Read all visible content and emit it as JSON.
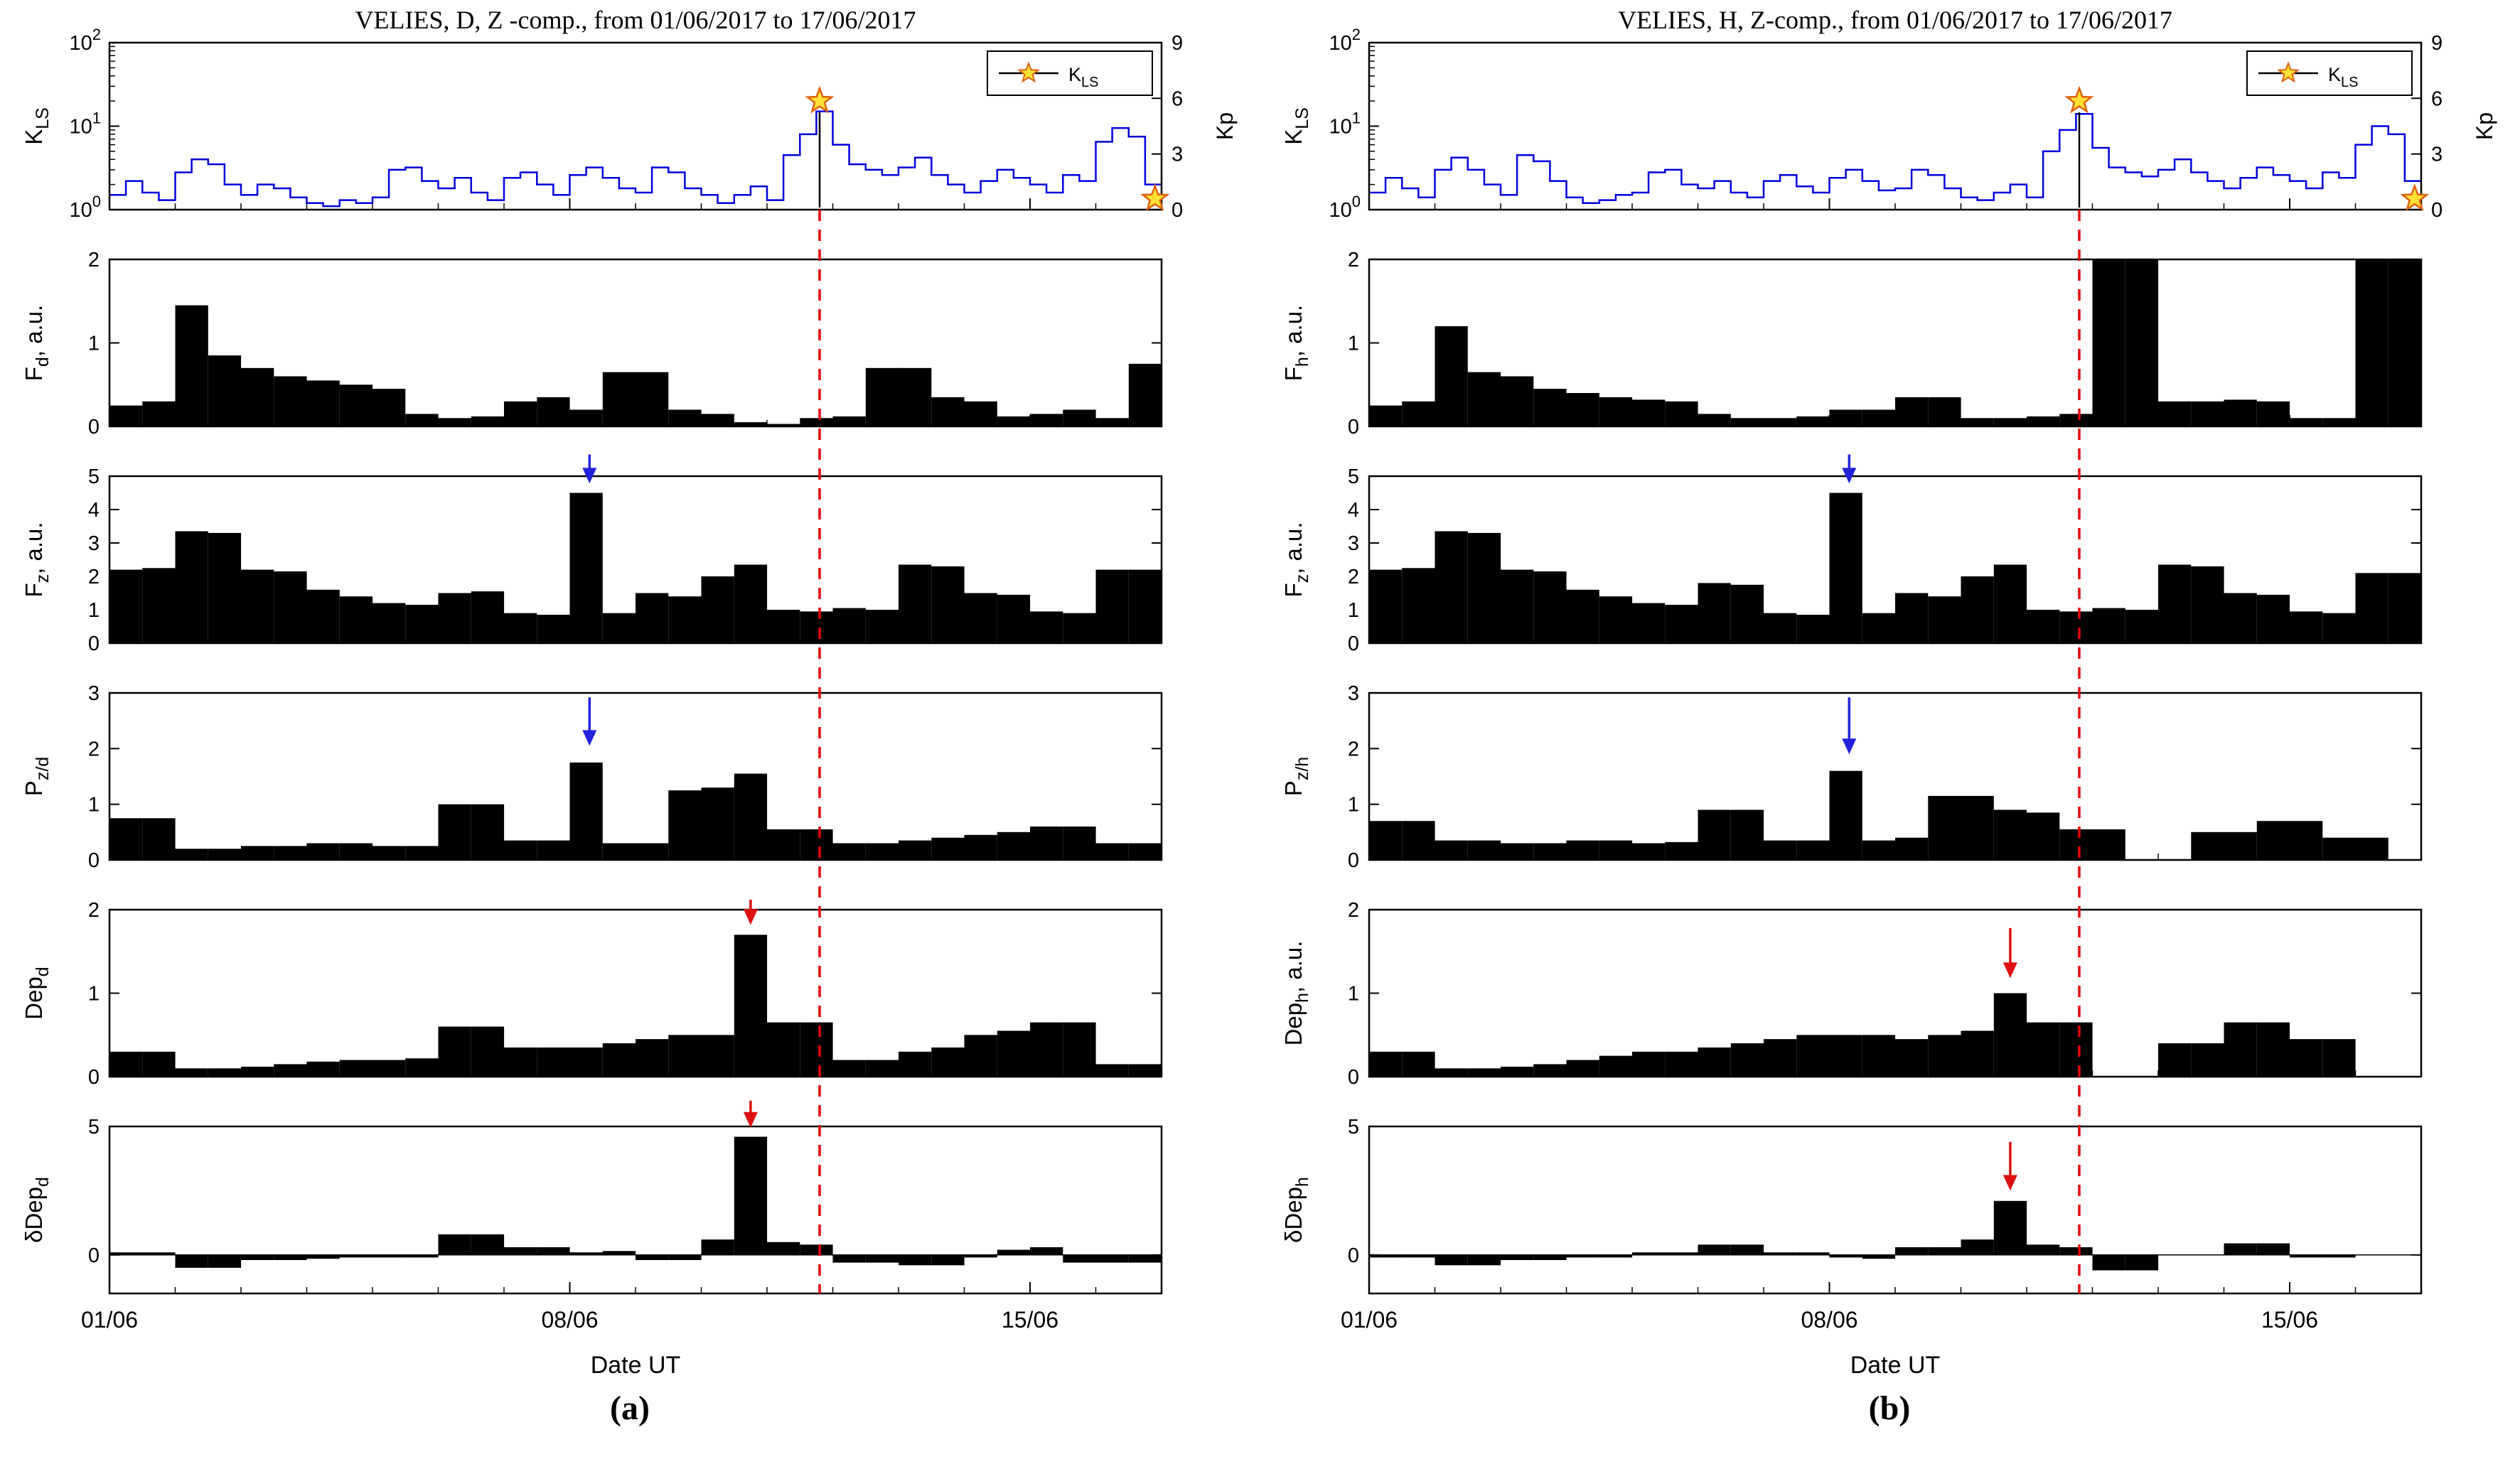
{
  "chart_data": {
    "type": "multi-panel-time-series",
    "x_axis": {
      "xlabel": "Date  UT",
      "tick_labels": [
        "01/06",
        "08/06",
        "15/06"
      ],
      "tick_days": [
        0,
        7,
        14
      ],
      "range_days": [
        0,
        16
      ],
      "minor_tick_every_days": 1
    },
    "colors": {
      "line": "#0000DD",
      "bar": "#000000",
      "axis": "#000000",
      "star_fill": "#FFE135",
      "star_edge": "#E06010",
      "event_line": "#E8000B",
      "arrow_blue": "#2222DD",
      "arrow_red": "#DD1111"
    },
    "panels": [
      {
        "id": "a",
        "caption": "(a)",
        "title": "VELIES, D, Z -comp.,  from 01/06/2017 to 17/06/2017",
        "event_line_day": 10.8,
        "subplots": [
          {
            "name": "K_LS",
            "type": "step_log",
            "ylabel": {
              "main": "K",
              "sub": "LS",
              "suffix": ""
            },
            "ylim": [
              1,
              100
            ],
            "log_exponents": [
              0,
              1,
              2
            ],
            "right": {
              "label": "Kp",
              "ticks": [
                0,
                3,
                6,
                9
              ]
            },
            "legend": {
              "main": "K",
              "sub": "LS"
            },
            "step_days": 0.25,
            "values": [
              1.5,
              2.2,
              1.6,
              1.3,
              2.8,
              4.0,
              3.5,
              2.0,
              1.5,
              2.0,
              1.8,
              1.4,
              1.2,
              1.1,
              1.3,
              1.2,
              1.4,
              3.0,
              3.2,
              2.2,
              1.8,
              2.4,
              1.6,
              1.3,
              2.4,
              2.8,
              2.0,
              1.5,
              2.6,
              3.2,
              2.4,
              1.8,
              1.6,
              3.2,
              2.8,
              1.8,
              1.5,
              1.2,
              1.5,
              1.9,
              1.3,
              4.5,
              8.0,
              15.0,
              6.0,
              3.5,
              3.0,
              2.6,
              3.2,
              4.2,
              2.6,
              2.0,
              1.6,
              2.2,
              3.0,
              2.4,
              2.0,
              1.6,
              2.6,
              2.2,
              6.5,
              9.5,
              7.5,
              2.0
            ],
            "stars": [
              {
                "x": 10.8,
                "y": 20,
                "stem": true
              },
              {
                "x": 15.9,
                "y": 1.35,
                "stem": false
              }
            ]
          },
          {
            "name": "F_d",
            "type": "bar",
            "ylabel": {
              "main": "F",
              "sub": "d",
              "suffix": ", a.u."
            },
            "ylim": [
              0,
              2
            ],
            "yticks": [
              0,
              1,
              2
            ],
            "step_days": 0.5,
            "values": [
              0.25,
              0.3,
              1.45,
              0.85,
              0.7,
              0.6,
              0.55,
              0.5,
              0.45,
              0.15,
              0.1,
              0.12,
              0.3,
              0.35,
              0.2,
              0.65,
              0.65,
              0.2,
              0.15,
              0.05,
              0.03,
              0.1,
              0.12,
              0.7,
              0.7,
              0.35,
              0.3,
              0.12,
              0.15,
              0.2,
              0.1,
              0.75
            ]
          },
          {
            "name": "F_z",
            "type": "bar",
            "ylabel": {
              "main": "F",
              "sub": "z",
              "suffix": ", a.u."
            },
            "ylim": [
              0,
              5
            ],
            "yticks": [
              0,
              1,
              2,
              3,
              4,
              5
            ],
            "step_days": 0.5,
            "values": [
              2.2,
              2.25,
              3.35,
              3.3,
              2.2,
              2.15,
              1.6,
              1.4,
              1.2,
              1.15,
              1.5,
              1.55,
              0.9,
              0.85,
              4.5,
              0.9,
              1.5,
              1.4,
              2.0,
              2.35,
              1.0,
              0.95,
              1.05,
              1.0,
              2.35,
              2.3,
              1.5,
              1.45,
              0.95,
              0.9,
              2.2,
              2.2
            ],
            "arrow": {
              "x": 7.3,
              "tail": 5.65,
              "tip": 4.78,
              "color": "#2222DD"
            }
          },
          {
            "name": "P_z/d",
            "type": "bar",
            "ylabel": {
              "main": "P",
              "sub": "z/d",
              "suffix": ""
            },
            "ylim": [
              0,
              3
            ],
            "yticks": [
              0,
              1,
              2,
              3
            ],
            "step_days": 0.5,
            "values": [
              0.75,
              0.75,
              0.2,
              0.2,
              0.25,
              0.25,
              0.3,
              0.3,
              0.25,
              0.25,
              1.0,
              1.0,
              0.35,
              0.35,
              1.75,
              0.3,
              0.3,
              1.25,
              1.3,
              1.55,
              0.55,
              0.55,
              0.3,
              0.3,
              0.35,
              0.4,
              0.45,
              0.5,
              0.6,
              0.6,
              0.3,
              0.3
            ],
            "arrow": {
              "x": 7.3,
              "tail": 2.92,
              "tip": 2.05,
              "color": "#2222DD"
            }
          },
          {
            "name": "Dep_d",
            "type": "bar",
            "ylabel": {
              "main": "Dep",
              "sub": "d",
              "suffix": ""
            },
            "ylim": [
              0,
              2
            ],
            "yticks": [
              0,
              1,
              2
            ],
            "step_days": 0.5,
            "values": [
              0.3,
              0.3,
              0.1,
              0.1,
              0.12,
              0.15,
              0.18,
              0.2,
              0.2,
              0.22,
              0.6,
              0.6,
              0.35,
              0.35,
              0.35,
              0.4,
              0.45,
              0.5,
              0.5,
              1.7,
              0.65,
              0.65,
              0.2,
              0.2,
              0.3,
              0.35,
              0.5,
              0.55,
              0.65,
              0.65,
              0.15,
              0.15
            ],
            "arrow": {
              "x": 9.75,
              "tail": 2.12,
              "tip": 1.82,
              "color": "#DD1111"
            }
          },
          {
            "name": "δDep_d",
            "type": "bar",
            "ylabel": {
              "main": "δDep",
              "sub": "d",
              "suffix": ""
            },
            "ylim": [
              -1.5,
              5
            ],
            "yticks": [
              0,
              5
            ],
            "step_days": 0.5,
            "values": [
              0.1,
              0.1,
              -0.5,
              -0.5,
              -0.2,
              -0.2,
              -0.15,
              -0.1,
              -0.1,
              -0.1,
              0.8,
              0.8,
              0.3,
              0.3,
              0.1,
              0.15,
              -0.2,
              -0.2,
              0.6,
              4.6,
              0.5,
              0.4,
              -0.3,
              -0.3,
              -0.4,
              -0.4,
              -0.1,
              0.2,
              0.3,
              -0.3,
              -0.3,
              -0.3
            ],
            "arrow": {
              "x": 9.75,
              "tail": 6.0,
              "tip": 4.95,
              "color": "#DD1111"
            }
          }
        ]
      },
      {
        "id": "b",
        "caption": "(b)",
        "title": "VELIES, H, Z-comp.,  from 01/06/2017 to 17/06/2017",
        "event_line_day": 10.8,
        "subplots": [
          {
            "name": "K_LS",
            "type": "step_log",
            "ylabel": {
              "main": "K",
              "sub": "LS",
              "suffix": ""
            },
            "ylim": [
              1,
              100
            ],
            "log_exponents": [
              0,
              1,
              2
            ],
            "right": {
              "label": "Kp",
              "ticks": [
                0,
                3,
                6,
                9
              ]
            },
            "legend": {
              "main": "K",
              "sub": "LS"
            },
            "step_days": 0.25,
            "values": [
              1.6,
              2.4,
              1.8,
              1.4,
              3.0,
              4.2,
              3.0,
              2.0,
              1.5,
              4.5,
              3.8,
              2.2,
              1.4,
              1.2,
              1.3,
              1.5,
              1.6,
              2.8,
              3.0,
              2.0,
              1.8,
              2.2,
              1.6,
              1.4,
              2.2,
              2.6,
              1.9,
              1.6,
              2.4,
              3.0,
              2.2,
              1.7,
              1.8,
              3.0,
              2.6,
              1.8,
              1.4,
              1.3,
              1.6,
              2.0,
              1.4,
              5.0,
              9.0,
              14.0,
              5.5,
              3.2,
              2.8,
              2.5,
              3.0,
              4.0,
              2.8,
              2.2,
              1.8,
              2.4,
              3.2,
              2.6,
              2.2,
              1.8,
              2.8,
              2.4,
              6.0,
              10.0,
              8.0,
              2.2
            ],
            "stars": [
              {
                "x": 10.8,
                "y": 20,
                "stem": true
              },
              {
                "x": 15.9,
                "y": 1.35,
                "stem": false
              }
            ]
          },
          {
            "name": "F_h",
            "type": "bar",
            "ylabel": {
              "main": "F",
              "sub": "h",
              "suffix": ", a.u."
            },
            "ylim": [
              0,
              2
            ],
            "yticks": [
              0,
              1,
              2
            ],
            "step_days": 0.5,
            "values": [
              0.25,
              0.3,
              1.2,
              0.65,
              0.6,
              0.45,
              0.4,
              0.35,
              0.32,
              0.3,
              0.15,
              0.1,
              0.1,
              0.12,
              0.2,
              0.2,
              0.35,
              0.35,
              0.1,
              0.1,
              0.12,
              0.15,
              2.0,
              2.0,
              0.3,
              0.3,
              0.32,
              0.3,
              0.1,
              0.1,
              2.0,
              2.0
            ]
          },
          {
            "name": "F_z",
            "type": "bar",
            "ylabel": {
              "main": "F",
              "sub": "z",
              "suffix": ", a.u."
            },
            "ylim": [
              0,
              5
            ],
            "yticks": [
              0,
              1,
              2,
              3,
              4,
              5
            ],
            "step_days": 0.5,
            "values": [
              2.2,
              2.25,
              3.35,
              3.3,
              2.2,
              2.15,
              1.6,
              1.4,
              1.2,
              1.15,
              1.8,
              1.75,
              0.9,
              0.85,
              4.5,
              0.9,
              1.5,
              1.4,
              2.0,
              2.35,
              1.0,
              0.95,
              1.05,
              1.0,
              2.35,
              2.3,
              1.5,
              1.45,
              0.95,
              0.9,
              2.1,
              2.1
            ],
            "arrow": {
              "x": 7.3,
              "tail": 5.65,
              "tip": 4.78,
              "color": "#2222DD"
            }
          },
          {
            "name": "P_z/h",
            "type": "bar",
            "ylabel": {
              "main": "P",
              "sub": "z/h",
              "suffix": ""
            },
            "ylim": [
              0,
              3
            ],
            "yticks": [
              0,
              1,
              2,
              3
            ],
            "step_days": 0.5,
            "values": [
              0.7,
              0.7,
              0.35,
              0.35,
              0.3,
              0.3,
              0.35,
              0.35,
              0.3,
              0.32,
              0.9,
              0.9,
              0.35,
              0.35,
              1.6,
              0.35,
              0.4,
              1.15,
              1.15,
              0.9,
              0.85,
              0.55,
              0.55,
              0,
              0,
              0.5,
              0.5,
              0.7,
              0.7,
              0.4,
              0.4,
              0
            ],
            "arrow": {
              "x": 7.3,
              "tail": 2.92,
              "tip": 1.9,
              "color": "#2222DD"
            }
          },
          {
            "name": "Dep_h",
            "type": "bar",
            "ylabel": {
              "main": "Dep",
              "sub": "h",
              "suffix": ", a.u."
            },
            "ylim": [
              0,
              2
            ],
            "yticks": [
              0,
              1,
              2
            ],
            "step_days": 0.5,
            "values": [
              0.3,
              0.3,
              0.1,
              0.1,
              0.12,
              0.15,
              0.2,
              0.25,
              0.3,
              0.3,
              0.35,
              0.4,
              0.45,
              0.5,
              0.5,
              0.5,
              0.45,
              0.5,
              0.55,
              1.0,
              0.65,
              0.65,
              0,
              0,
              0.4,
              0.4,
              0.65,
              0.65,
              0.45,
              0.45,
              0,
              0
            ],
            "arrow": {
              "x": 9.75,
              "tail": 1.78,
              "tip": 1.18,
              "color": "#DD1111"
            }
          },
          {
            "name": "δDep_h",
            "type": "bar",
            "ylabel": {
              "main": "δDep",
              "sub": "h",
              "suffix": ""
            },
            "ylim": [
              -1.5,
              5
            ],
            "yticks": [
              0,
              5
            ],
            "step_days": 0.5,
            "values": [
              -0.1,
              -0.1,
              -0.4,
              -0.4,
              -0.2,
              -0.2,
              -0.1,
              -0.1,
              0.1,
              0.1,
              0.4,
              0.4,
              0.1,
              0.1,
              -0.1,
              -0.15,
              0.3,
              0.3,
              0.6,
              2.1,
              0.4,
              0.3,
              -0.6,
              -0.6,
              0,
              0,
              0.45,
              0.45,
              -0.1,
              -0.1,
              0,
              0
            ],
            "arrow": {
              "x": 9.75,
              "tail": 4.4,
              "tip": 2.5,
              "color": "#DD1111"
            }
          }
        ]
      }
    ]
  }
}
